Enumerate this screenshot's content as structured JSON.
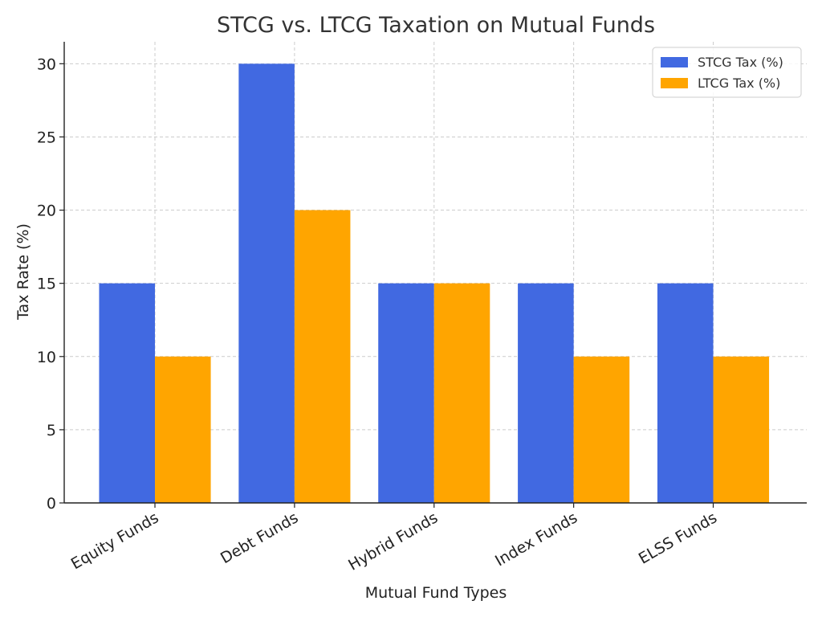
{
  "chart_data": {
    "type": "bar",
    "title": "STCG vs. LTCG Taxation on Mutual Funds",
    "xlabel": "Mutual Fund Types",
    "ylabel": "Tax Rate (%)",
    "categories": [
      "Equity Funds",
      "Debt Funds",
      "Hybrid Funds",
      "Index Funds",
      "ELSS Funds"
    ],
    "series": [
      {
        "name": "STCG Tax (%)",
        "values": [
          15,
          30,
          15,
          15,
          15
        ],
        "color": "#4169e1"
      },
      {
        "name": "LTCG Tax (%)",
        "values": [
          10,
          20,
          15,
          10,
          10
        ],
        "color": "#ffa500"
      }
    ],
    "ylim": [
      0,
      31.5
    ],
    "yticks": [
      0,
      5,
      10,
      15,
      20,
      25,
      30
    ],
    "grid": true,
    "legend_position": "top-right"
  }
}
